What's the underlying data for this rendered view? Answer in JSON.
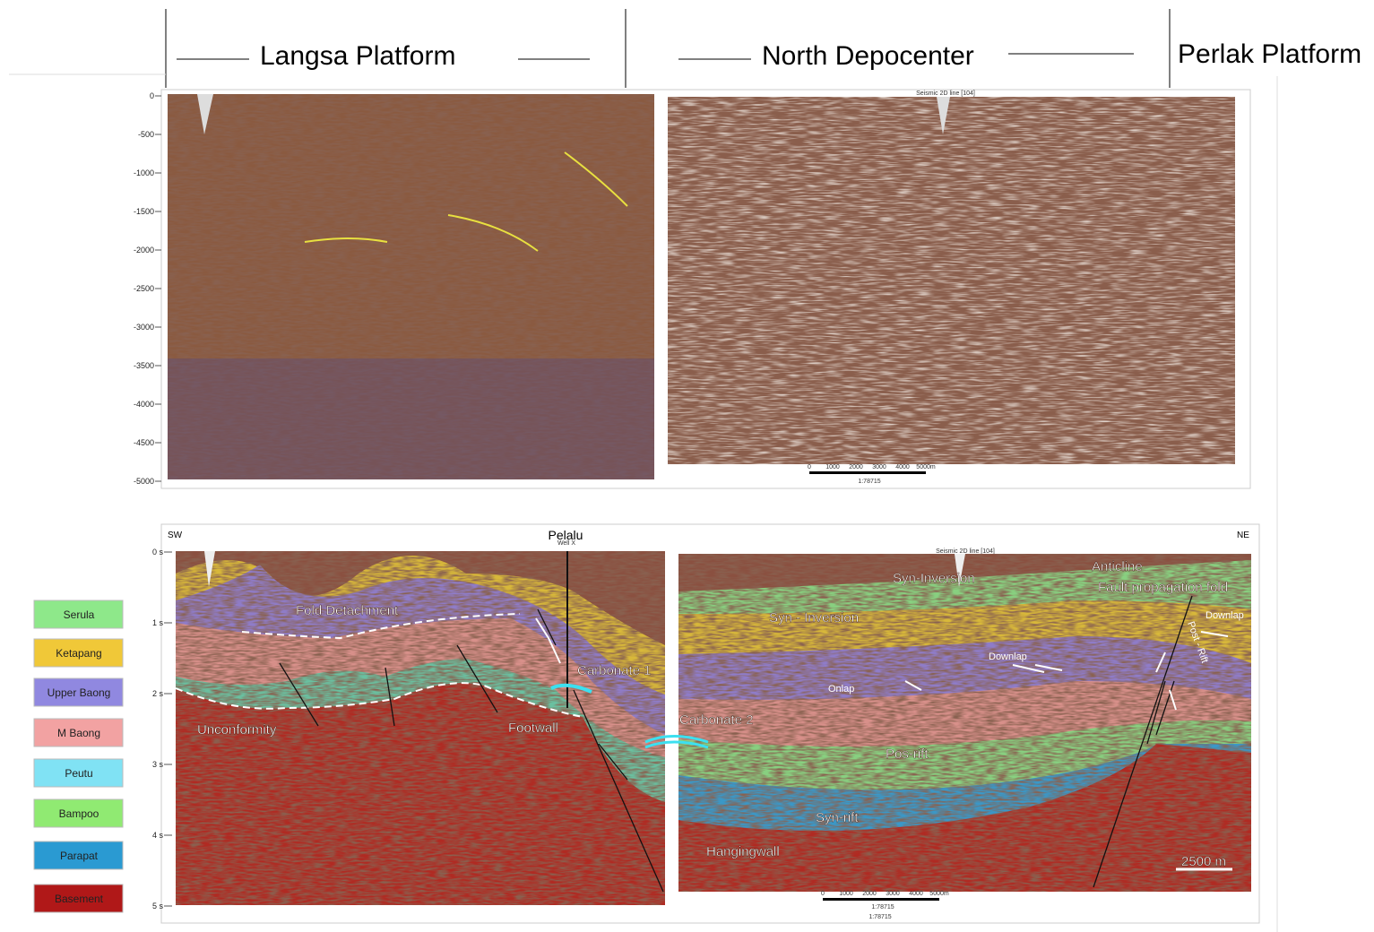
{
  "header": {
    "sections": [
      "Langsa Platform",
      "North Depocenter",
      "Perlak Platform"
    ]
  },
  "top_panel": {
    "depth_labels": [
      "0",
      "-500",
      "-1000",
      "-1500",
      "-2000",
      "-2500",
      "-3000",
      "-3500",
      "-4000",
      "-4500",
      "-5000"
    ],
    "line_title": "Seismic 2D line [104]",
    "scale_labels": [
      "0",
      "1000",
      "2000",
      "3000",
      "4000",
      "5000m"
    ],
    "scale_ratio": "1:78715"
  },
  "bottom_panel": {
    "left_end": "SW",
    "right_end": "NE",
    "well": "Pelalu",
    "well_sub": "Well X",
    "line_title": "Seismic 2D line [104]",
    "time_labels": [
      "0 s",
      "1 s",
      "2 s",
      "3 s",
      "4 s",
      "5 s"
    ],
    "annotations": [
      "Fold Detachment",
      "Carbonate 1",
      "Unconformity",
      "Footwall",
      "Carbonate 2",
      "Syn-Inversion",
      "Syn - Inversion",
      "Anticline",
      "Fault propagation fold",
      "Downlap",
      "Downlap",
      "Post - Rift",
      "Onlap",
      "Pos-rift",
      "Syn-rift",
      "Hangingwall"
    ],
    "scale_bar": "2500 m",
    "scale_labels": [
      "0",
      "1000",
      "2000",
      "3000",
      "4000",
      "5000m"
    ],
    "scale_ratio": "1:78715",
    "scale_ratio_2": "1:78715"
  },
  "legend": {
    "items": [
      {
        "label": "Serula",
        "color": "#8ee88a"
      },
      {
        "label": "Ketapang",
        "color": "#f0c838"
      },
      {
        "label": "Upper Baong",
        "color": "#9088e0"
      },
      {
        "label": "M Baong",
        "color": "#f2a2a2"
      },
      {
        "label": "Peutu",
        "color": "#80e2f4"
      },
      {
        "label": "Bampoo",
        "color": "#90ea72"
      },
      {
        "label": "Parapat",
        "color": "#2a9ad2"
      },
      {
        "label": "Basement",
        "color": "#b01818"
      }
    ]
  }
}
